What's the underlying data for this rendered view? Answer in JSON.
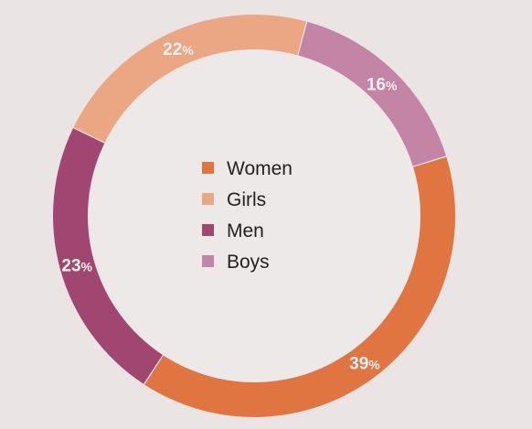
{
  "chart_data": {
    "type": "donut",
    "slices": [
      {
        "label": "Girls",
        "value": 22,
        "color": "#eba783"
      },
      {
        "label": "Boys",
        "value": 16,
        "color": "#c484a5"
      },
      {
        "label": "Women",
        "value": 39,
        "color": "#e07542"
      },
      {
        "label": "Men",
        "value": 23,
        "color": "#a04670"
      }
    ],
    "legend": {
      "placement": "center",
      "items": [
        {
          "label": "Women",
          "color": "#e07542"
        },
        {
          "label": "Girls",
          "color": "#eba783"
        },
        {
          "label": "Men",
          "color": "#a04670"
        },
        {
          "label": "Boys",
          "color": "#c484a5"
        }
      ]
    },
    "value_suffix": "%",
    "background": "#ebe4e5",
    "hole_color": "#ede9e8"
  }
}
